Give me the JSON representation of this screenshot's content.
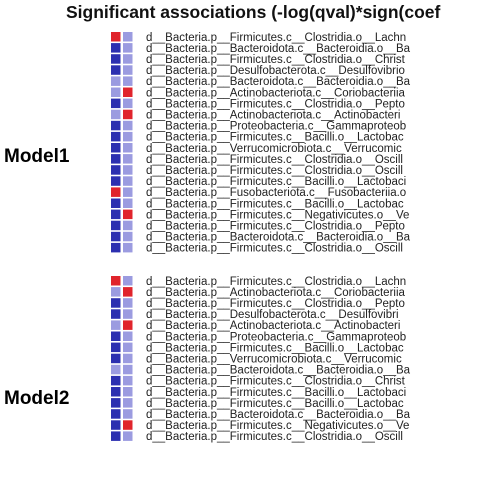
{
  "chart_data": {
    "type": "heatmap",
    "title": "Significant associations (-log(qval)*sign(coef",
    "color_scale": {
      "positive": "#e0242c",
      "strong_negative": "#2c2fb0",
      "weak_negative": "#9b9be0"
    },
    "panels": [
      {
        "name": "Model1",
        "rows": [
          "d__Bacteria.p__Firmicutes.c__Clostridia.o__Lachn",
          "d__Bacteria.p__Bacteroidota.c__Bacteroidia.o__Ba",
          "d__Bacteria.p__Firmicutes.c__Clostridia.o__Christ",
          "d__Bacteria.p__Desulfobacterota.c__Desulfovibrio",
          "d__Bacteria.p__Bacteroidota.c__Bacteroidia.o__Ba",
          "d__Bacteria.p__Actinobacteriota.c__Coriobacteriia",
          "d__Bacteria.p__Firmicutes.c__Clostridia.o__Pepto",
          "d__Bacteria.p__Actinobacteriota.c__Actinobacteri",
          "d__Bacteria.p__Proteobacteria.c__Gammaproteob",
          "d__Bacteria.p__Firmicutes.c__Bacilli.o__Lactobac",
          "d__Bacteria.p__Verrucomicrobiota.c__Verrucomic",
          "d__Bacteria.p__Firmicutes.c__Clostridia.o__Oscill",
          "d__Bacteria.p__Firmicutes.c__Clostridia.o__Oscill",
          "d__Bacteria.p__Firmicutes.c__Bacilli.o__Lactobaci",
          "d__Bacteria.p__Fusobacteriota.c__Fusobacteriia.o",
          "d__Bacteria.p__Firmicutes.c__Bacilli.o__Lactobac",
          "d__Bacteria.p__Firmicutes.c__Negativicutes.o__Ve",
          "d__Bacteria.p__Firmicutes.c__Clostridia.o__Pepto",
          "d__Bacteria.p__Bacteroidota.c__Bacteroidia.o__Ba",
          "d__Bacteria.p__Firmicutes.c__Clostridia.o__Oscill"
        ],
        "values": [
          [
            2,
            -1
          ],
          [
            -2,
            -1
          ],
          [
            -2,
            -1
          ],
          [
            -2,
            -1
          ],
          [
            -1,
            -1
          ],
          [
            -1,
            2
          ],
          [
            -2,
            -1
          ],
          [
            -1,
            2
          ],
          [
            -2,
            -1
          ],
          [
            -2,
            -1
          ],
          [
            -2,
            -1
          ],
          [
            -2,
            -1
          ],
          [
            -2,
            -1
          ],
          [
            -2,
            -1
          ],
          [
            2,
            -1
          ],
          [
            -2,
            -1
          ],
          [
            -2,
            2
          ],
          [
            -2,
            -1
          ],
          [
            -2,
            -1
          ],
          [
            -2,
            -1
          ]
        ]
      },
      {
        "name": "Model2",
        "rows": [
          "d__Bacteria.p__Firmicutes.c__Clostridia.o__Lachn",
          "d__Bacteria.p__Actinobacteriota.c__Coriobacteriia",
          "d__Bacteria.p__Firmicutes.c__Clostridia.o__Pepto",
          "d__Bacteria.p__Desulfobacterota.c__Desulfovibri",
          "d__Bacteria.p__Actinobacteriota.c__Actinobacteri",
          "d__Bacteria.p__Proteobacteria.c__Gammaproteob",
          "d__Bacteria.p__Firmicutes.c__Bacilli.o__Lactobac",
          "d__Bacteria.p__Verrucomicrobiota.c__Verrucomic",
          "d__Bacteria.p__Bacteroidota.c__Bacteroidia.o__Ba",
          "d__Bacteria.p__Firmicutes.c__Clostridia.o__Christ",
          "d__Bacteria.p__Firmicutes.c__Bacilli.o__Lactobaci",
          "d__Bacteria.p__Firmicutes.c__Bacilli.o__Lactobac",
          "d__Bacteria.p__Bacteroidota.c__Bacteroidia.o__Ba",
          "d__Bacteria.p__Firmicutes.c__Negativicutes.o__Ve",
          "d__Bacteria.p__Firmicutes.c__Clostridia.o__Oscill"
        ],
        "values": [
          [
            2,
            -1
          ],
          [
            -1,
            2
          ],
          [
            -2,
            -1
          ],
          [
            -2,
            -1
          ],
          [
            -1,
            2
          ],
          [
            -2,
            -1
          ],
          [
            -2,
            -1
          ],
          [
            -2,
            -1
          ],
          [
            -1,
            -1
          ],
          [
            -2,
            -1
          ],
          [
            -2,
            -1
          ],
          [
            -2,
            -1
          ],
          [
            -2,
            -1
          ],
          [
            -2,
            2
          ],
          [
            -2,
            -1
          ]
        ]
      }
    ]
  }
}
